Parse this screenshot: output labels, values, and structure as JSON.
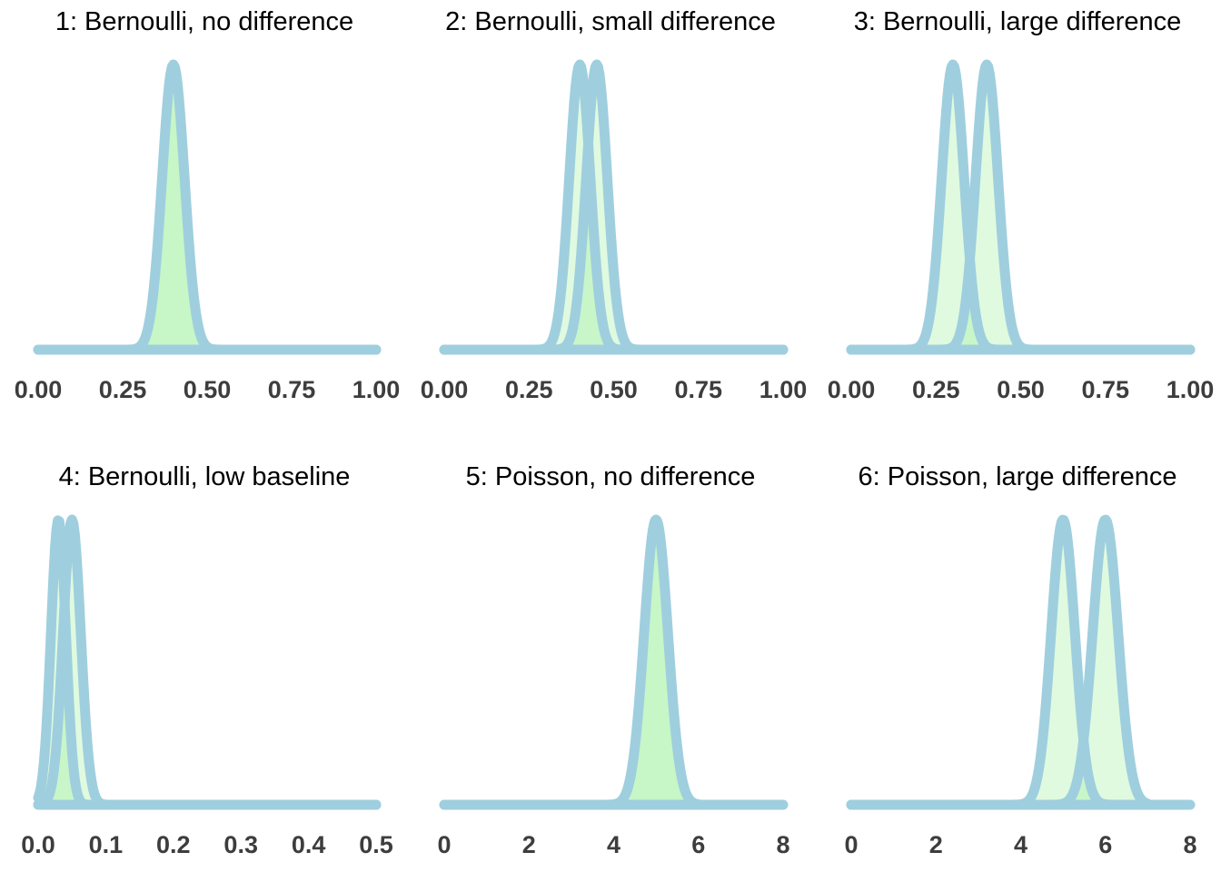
{
  "chart_data": [
    {
      "type": "area",
      "title": "1: Bernoulli, no difference",
      "xlim": [
        0,
        1
      ],
      "xticks": [
        "0.00",
        "0.25",
        "0.50",
        "0.75",
        "1.00"
      ],
      "tick_values": [
        0,
        0.25,
        0.5,
        0.75,
        1
      ],
      "grid": false,
      "series": [
        {
          "peak_x": 0.4,
          "sd": 0.033,
          "x_max": 1.0,
          "relative_peak": 1.0
        }
      ]
    },
    {
      "type": "area",
      "title": "2: Bernoulli, small difference",
      "xlim": [
        0,
        1
      ],
      "xticks": [
        "0.00",
        "0.25",
        "0.50",
        "0.75",
        "1.00"
      ],
      "tick_values": [
        0,
        0.25,
        0.5,
        0.75,
        1
      ],
      "grid": false,
      "series": [
        {
          "peak_x": 0.4,
          "sd": 0.031,
          "x_max": 1.0,
          "relative_peak": 1.0
        },
        {
          "peak_x": 0.45,
          "sd": 0.031,
          "x_max": 1.0,
          "relative_peak": 1.0
        }
      ]
    },
    {
      "type": "area",
      "title": "3: Bernoulli, large difference",
      "xlim": [
        0,
        1
      ],
      "xticks": [
        "0.00",
        "0.25",
        "0.50",
        "0.75",
        "1.00"
      ],
      "tick_values": [
        0,
        0.25,
        0.5,
        0.75,
        1
      ],
      "grid": false,
      "series": [
        {
          "peak_x": 0.3,
          "sd": 0.033,
          "x_max": 1.0,
          "relative_peak": 1.0
        },
        {
          "peak_x": 0.4,
          "sd": 0.033,
          "x_max": 1.0,
          "relative_peak": 1.0
        }
      ]
    },
    {
      "type": "area",
      "title": "4: Bernoulli, low baseline",
      "xlim": [
        0,
        0.5
      ],
      "xticks": [
        "0.0",
        "0.1",
        "0.2",
        "0.3",
        "0.4",
        "0.5"
      ],
      "tick_values": [
        0,
        0.1,
        0.2,
        0.3,
        0.4,
        0.5
      ],
      "grid": false,
      "series": [
        {
          "peak_x": 0.03,
          "sd": 0.011,
          "x_max": 0.5,
          "relative_peak": 1.0
        },
        {
          "peak_x": 0.05,
          "sd": 0.013,
          "x_max": 0.5,
          "relative_peak": 1.0
        }
      ]
    },
    {
      "type": "area",
      "title": "5: Poisson, no difference",
      "xlim": [
        0,
        8
      ],
      "xticks": [
        "0",
        "2",
        "4",
        "6",
        "8"
      ],
      "tick_values": [
        0,
        2,
        4,
        6,
        8
      ],
      "grid": false,
      "series": [
        {
          "peak_x": 5.0,
          "sd": 0.28,
          "x_max": 6.0,
          "relative_peak": 1.0
        }
      ]
    },
    {
      "type": "area",
      "title": "6: Poisson, large difference",
      "xlim": [
        0,
        8
      ],
      "xticks": [
        "0",
        "2",
        "4",
        "6",
        "8"
      ],
      "tick_values": [
        0,
        2,
        4,
        6,
        8
      ],
      "grid": false,
      "series": [
        {
          "peak_x": 5.0,
          "sd": 0.28,
          "x_max": 7.0,
          "relative_peak": 1.0
        },
        {
          "peak_x": 6.0,
          "sd": 0.3,
          "x_max": 7.0,
          "relative_peak": 1.0
        }
      ]
    }
  ],
  "colors": {
    "outline": "#9fcfde",
    "fill": "#90ee90",
    "overlap": "#8fd6bf",
    "tick_text": "#3d3d3d",
    "title_text": "#000000"
  }
}
